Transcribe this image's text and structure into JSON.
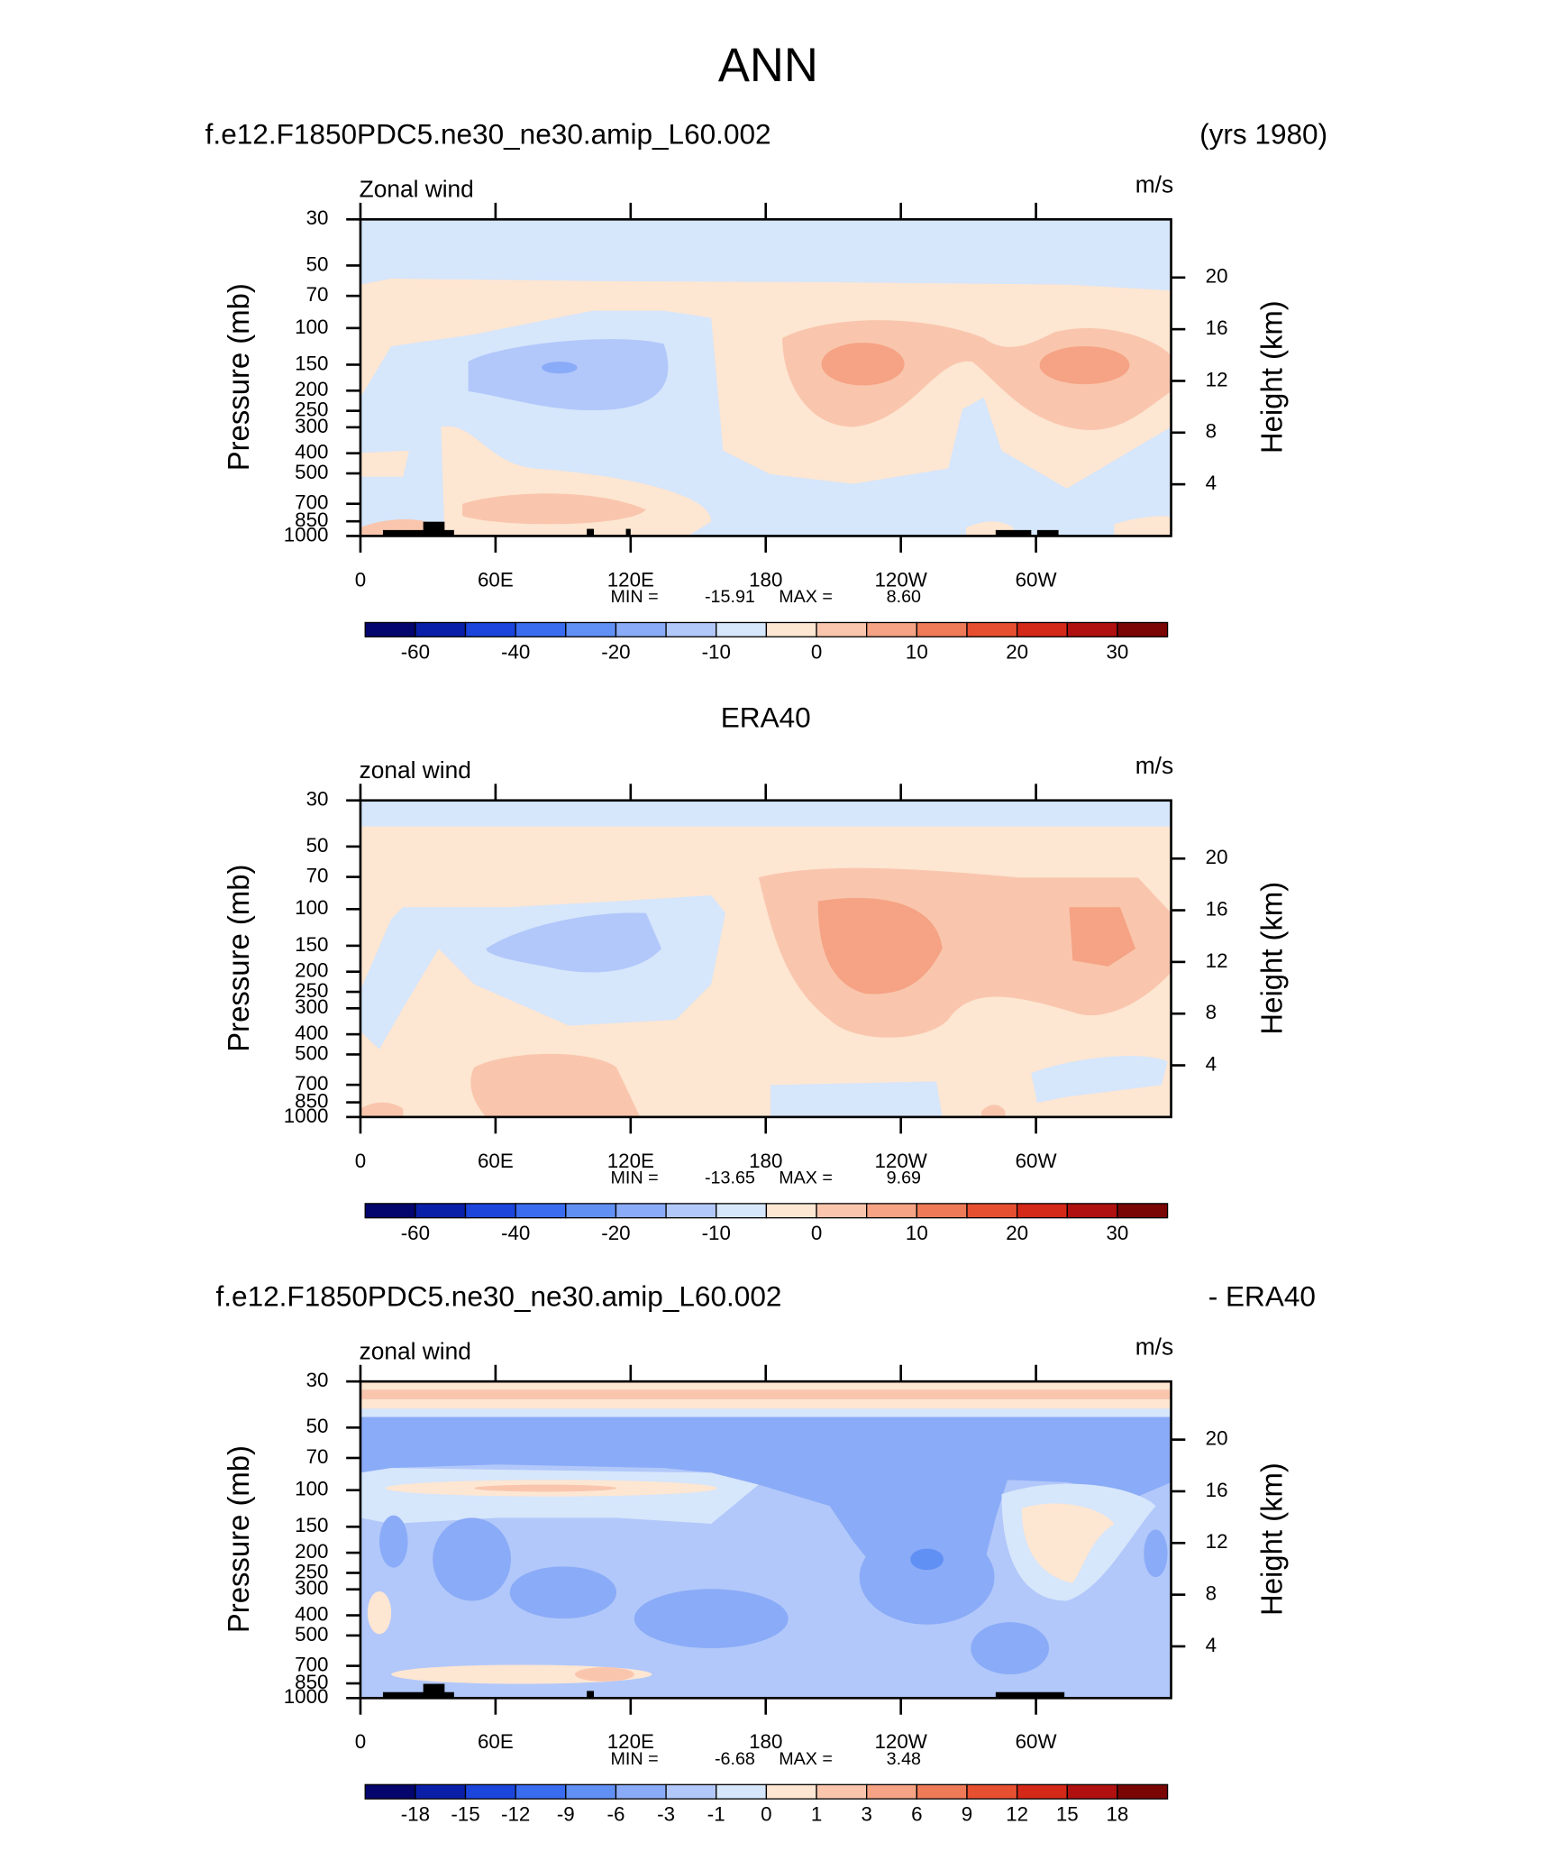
{
  "title": "ANN",
  "chart_data": [
    {
      "type": "contour",
      "title_left": "f.e12.F1850PDC5.ne30_ne30.amip_L60.002",
      "title_right": "(yrs 1980)",
      "subtitle": "Zonal wind",
      "units": "m/s",
      "ylabel": "Pressure (mb)",
      "y2label": "Height (km)",
      "xlim": [
        0,
        360
      ],
      "xticks": [
        0,
        {
          "value": 60,
          "label": "60E"
        },
        {
          "value": 120,
          "label": "120E"
        },
        180,
        {
          "value": 240,
          "label": "120W"
        },
        {
          "value": 300,
          "label": "60W"
        }
      ],
      "ylim": [
        1000,
        30
      ],
      "log_y": true,
      "yticks": [
        30,
        50,
        70,
        100,
        150,
        200,
        250,
        300,
        400,
        500,
        700,
        850,
        1000
      ],
      "y2lim": [
        0,
        24.5
      ],
      "y2ticks": [
        4,
        8,
        12,
        16,
        20
      ],
      "min_label": "MIN =",
      "min": -15.91,
      "max_label": "MAX =",
      "max": {
        "value": 8.6,
        "label": "8.60"
      },
      "colorbar": {
        "colors": [
          "#05056e",
          "#0a1fa8",
          "#1c45dc",
          "#3a6cf0",
          "#6190f5",
          "#8aabf7",
          "#b2c8fa",
          "#d6e6fb",
          "#fde6d2",
          "#f9c6ad",
          "#f5a384",
          "#ef7a58",
          "#e64f30",
          "#d42818",
          "#b01010",
          "#7a0505"
        ],
        "labels": [
          -60,
          -40,
          -20,
          -10,
          0,
          10,
          20,
          30
        ]
      }
    },
    {
      "type": "contour",
      "title": "ERA40",
      "subtitle": "zonal wind",
      "units": "m/s",
      "ylabel": "Pressure (mb)",
      "y2label": "Height (km)",
      "xlim": [
        0,
        360
      ],
      "xticks": [
        0,
        {
          "value": 60,
          "label": "60E"
        },
        {
          "value": 120,
          "label": "120E"
        },
        180,
        {
          "value": 240,
          "label": "120W"
        },
        {
          "value": 300,
          "label": "60W"
        }
      ],
      "ylim": [
        1000,
        30
      ],
      "log_y": true,
      "yticks": [
        30,
        50,
        70,
        100,
        150,
        200,
        250,
        300,
        400,
        500,
        700,
        850,
        1000
      ],
      "y2lim": [
        0,
        24.5
      ],
      "y2ticks": [
        4,
        8,
        12,
        16,
        20
      ],
      "min_label": "MIN =",
      "min": -13.65,
      "max_label": "MAX =",
      "max": 9.69,
      "colorbar": {
        "colors": [
          "#05056e",
          "#0a1fa8",
          "#1c45dc",
          "#3a6cf0",
          "#6190f5",
          "#8aabf7",
          "#b2c8fa",
          "#d6e6fb",
          "#fde6d2",
          "#f9c6ad",
          "#f5a384",
          "#ef7a58",
          "#e64f30",
          "#d42818",
          "#b01010",
          "#7a0505"
        ],
        "labels": [
          -60,
          -40,
          -20,
          -10,
          0,
          10,
          20,
          30
        ]
      }
    },
    {
      "type": "contour",
      "title_left": "f.e12.F1850PDC5.ne30_ne30.amip_L60.002",
      "title_right": "- ERA40",
      "subtitle": "zonal wind",
      "units": "m/s",
      "ylabel": "Pressure (mb)",
      "y2label": "Height (km)",
      "xlim": [
        0,
        360
      ],
      "xticks": [
        0,
        {
          "value": 60,
          "label": "60E"
        },
        {
          "value": 120,
          "label": "120E"
        },
        180,
        {
          "value": 240,
          "label": "120W"
        },
        {
          "value": 300,
          "label": "60W"
        }
      ],
      "ylim": [
        1000,
        30
      ],
      "log_y": true,
      "yticks": [
        30,
        50,
        70,
        100,
        150,
        200,
        250,
        300,
        400,
        500,
        700,
        850,
        1000
      ],
      "y2lim": [
        0,
        24.5
      ],
      "y2ticks": [
        4,
        8,
        12,
        16,
        20
      ],
      "min_label": "MIN =",
      "min": -6.68,
      "max_label": "MAX =",
      "max": 3.48,
      "colorbar": {
        "colors": [
          "#05056e",
          "#0a1fa8",
          "#1c45dc",
          "#3a6cf0",
          "#6190f5",
          "#8aabf7",
          "#b2c8fa",
          "#d6e6fb",
          "#fde6d2",
          "#f9c6ad",
          "#f5a384",
          "#ef7a58",
          "#e64f30",
          "#d42818",
          "#b01010",
          "#7a0505"
        ],
        "labels": [
          -18,
          -15,
          -12,
          -9,
          -6,
          -3,
          -1,
          0,
          1,
          3,
          6,
          9,
          12,
          15,
          18
        ]
      }
    }
  ]
}
